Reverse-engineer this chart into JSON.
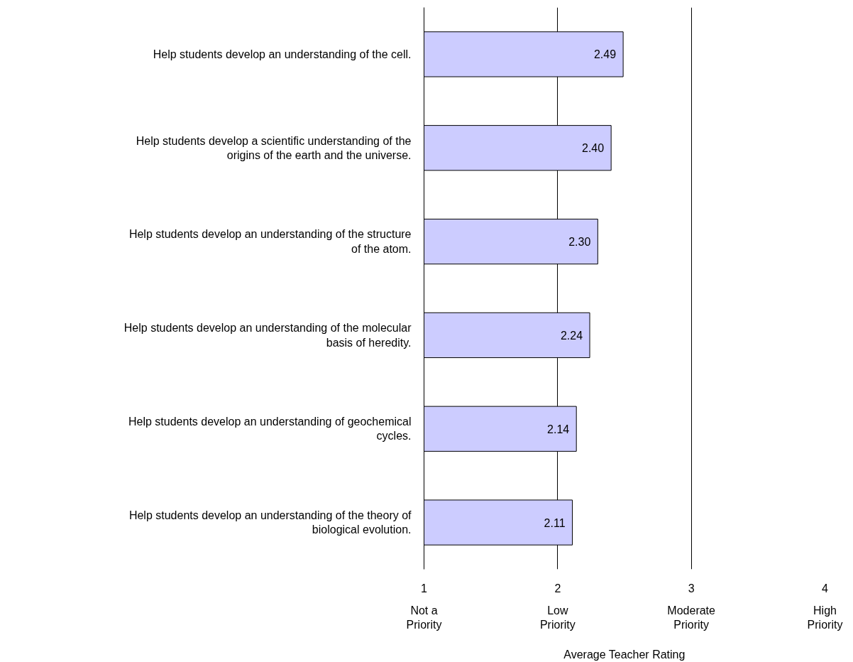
{
  "chart_data": {
    "type": "bar",
    "orientation": "horizontal",
    "categories": [
      "Help students develop an understanding of the cell.",
      "Help students develop a scientific understanding of the origins of the earth and the universe.",
      "Help students develop an understanding of the structure of the atom.",
      "Help students develop an understanding of the molecular basis of heredity.",
      "Help students develop an understanding of geochemical cycles.",
      "Help students develop an understanding of the theory of biological evolution."
    ],
    "values": [
      2.49,
      2.4,
      2.3,
      2.24,
      2.14,
      2.11
    ],
    "value_labels": [
      "2.49",
      "2.40",
      "2.30",
      "2.24",
      "2.14",
      "2.11"
    ],
    "color": "#ccccff",
    "xlim": [
      1,
      4
    ],
    "xticks": [
      1,
      2,
      3,
      4
    ],
    "annotations": [
      "Not a Priority",
      "Low Priority",
      "Moderate Priority",
      "High Priority"
    ],
    "xlabel": "Average Teacher Rating",
    "grid": "x"
  }
}
